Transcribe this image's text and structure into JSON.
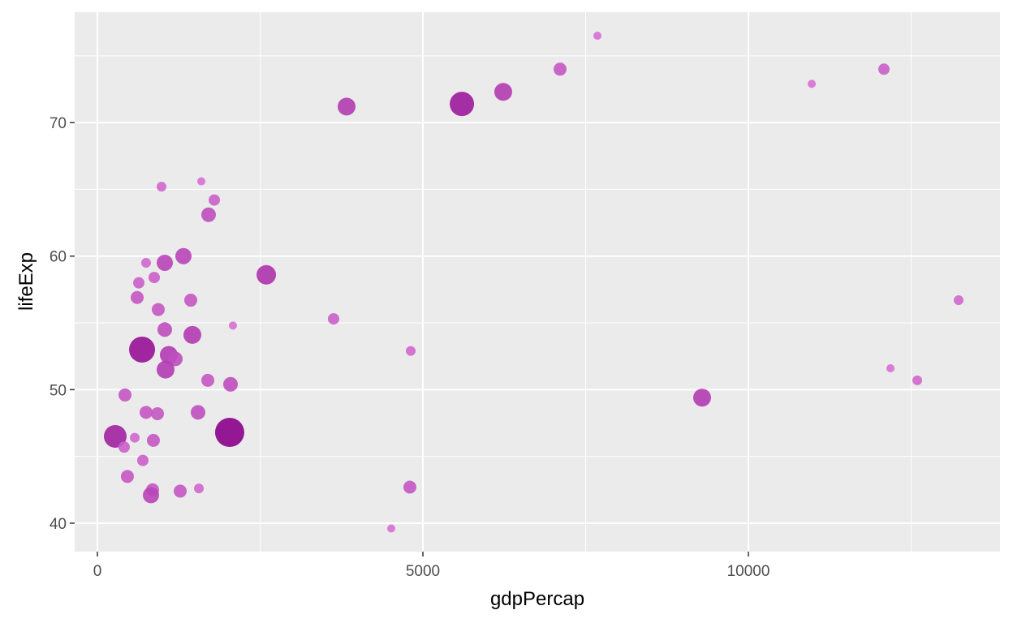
{
  "chart_data": {
    "type": "scatter",
    "x_label": "gdpPercap",
    "y_label": "lifeExp",
    "x": [
      7681,
      7107,
      10973,
      12082,
      6234,
      5599,
      3828,
      1596,
      985,
      1796,
      1708,
      1322,
      748,
      1035,
      873,
      636,
      2594,
      611,
      1434,
      13229,
      935,
      3628,
      2082,
      1035,
      1459,
      4813,
      686,
      1097,
      1197,
      1047,
      12182,
      12594,
      1696,
      2045,
      424,
      9289,
      1546,
      748,
      923,
      2032,
      274,
      574,
      860,
      411,
      698,
      461,
      848,
      823,
      1272,
      1559,
      4800,
      4514
    ],
    "y": [
      76.5,
      74.0,
      72.9,
      74.0,
      72.3,
      71.4,
      71.2,
      65.6,
      65.2,
      64.2,
      63.1,
      60.0,
      59.5,
      59.5,
      58.4,
      58.0,
      58.6,
      56.9,
      56.7,
      56.7,
      56.0,
      55.3,
      54.8,
      54.5,
      54.1,
      52.9,
      53.0,
      52.6,
      52.3,
      51.5,
      51.6,
      50.7,
      50.7,
      50.4,
      49.6,
      49.4,
      48.3,
      48.3,
      48.2,
      46.8,
      46.5,
      46.4,
      46.2,
      45.7,
      44.7,
      43.5,
      42.5,
      42.1,
      42.4,
      42.6,
      42.7,
      39.6
    ],
    "sizes": [
      5,
      8,
      5,
      7,
      11,
      15,
      11,
      5,
      6,
      7,
      9,
      10,
      6,
      10,
      7,
      7,
      12,
      8,
      8,
      6,
      8,
      7,
      5,
      9,
      11,
      6,
      16,
      11,
      9,
      11,
      5,
      6,
      8,
      9,
      8,
      11,
      9,
      8,
      8,
      18,
      14,
      6,
      8,
      7,
      7,
      8,
      8,
      10,
      8,
      6,
      8,
      5
    ],
    "color_low": "#d670d4",
    "color_high": "#8b008b",
    "xlim": [
      -349,
      13865
    ],
    "ylim": [
      37.87,
      78.27
    ],
    "xticks": [
      0,
      5000,
      10000
    ],
    "yticks": [
      40,
      50,
      60,
      70
    ],
    "x_minor_grid": [
      2500,
      7500,
      12500
    ],
    "y_minor_grid": [
      45,
      55,
      65,
      75
    ],
    "grid": true
  }
}
